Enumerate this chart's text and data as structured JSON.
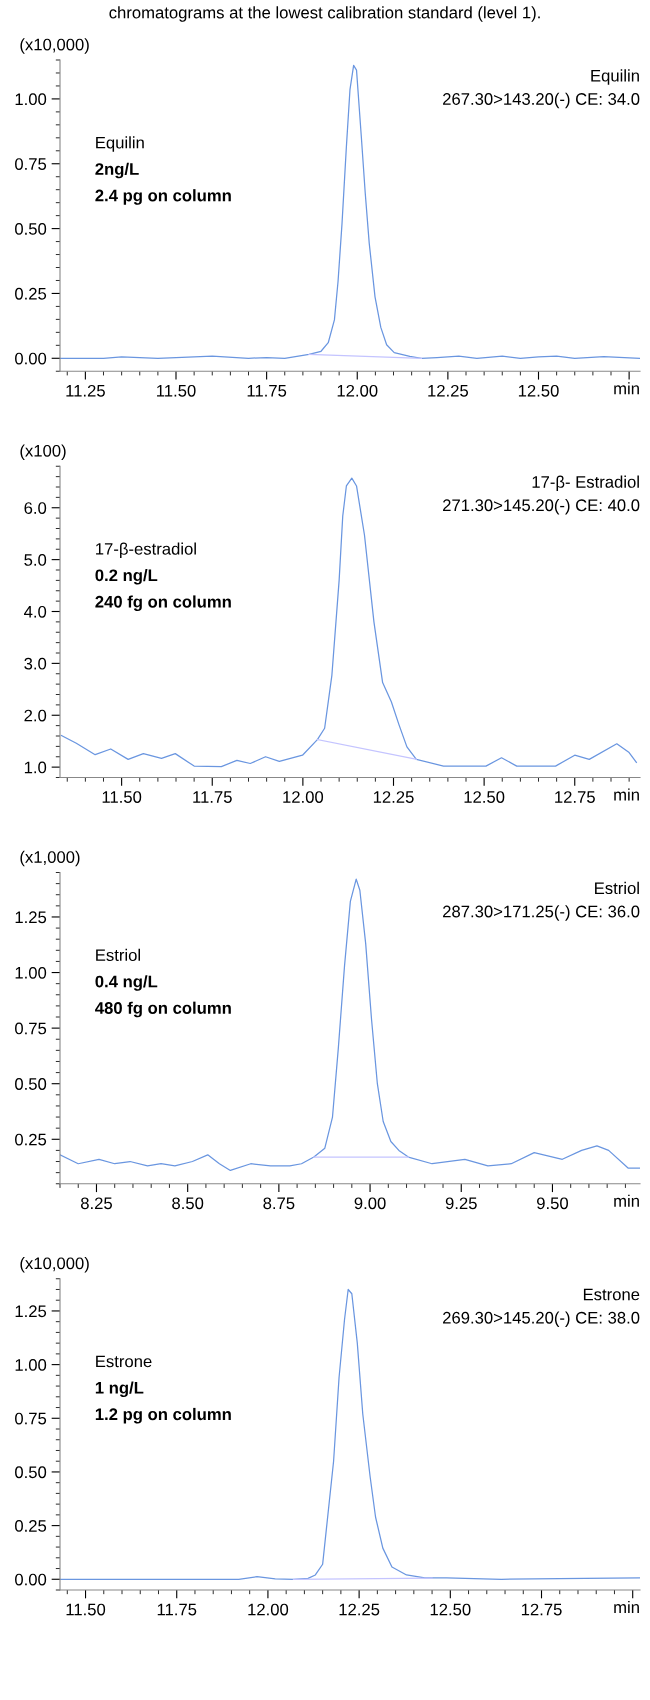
{
  "chart_data": [
    {
      "type": "line",
      "title": "chromatograms at the lowest calibration standard (level 1).",
      "ylabel": "(x10,000)",
      "xlabel": "min",
      "annotations": [
        "Equilin",
        "2ng/L",
        "2.4 pg on column",
        "Equilin",
        "267.30>143.20(-) CE: 34.0"
      ],
      "xlim": [
        11.18,
        12.78
      ],
      "ylim": [
        -0.05,
        1.15
      ],
      "xticks": [
        11.25,
        {
          "value": 11.5,
          "label": "11.50"
        },
        11.75,
        {
          "value": 12,
          "label": "12.00"
        },
        12.25,
        {
          "value": 12.5,
          "label": "12.50"
        },
        {
          "value": 12.75,
          "label": null
        }
      ],
      "yticks": [
        {
          "value": 0,
          "label": "0.00"
        },
        0.25,
        {
          "value": 0.5,
          "label": "0.50"
        },
        0.75,
        {
          "value": 1,
          "label": "1.00"
        }
      ],
      "grid": false,
      "marker": "none",
      "line_style": "solid",
      "series": [
        {
          "color": "#6a96e0",
          "x": [
            11.18,
            11.3,
            11.35,
            11.45,
            11.55,
            11.6,
            11.7,
            11.75,
            11.8,
            11.867,
            11.9,
            11.92,
            11.937,
            11.947,
            11.958,
            11.97,
            11.98,
            11.99,
            11.998,
            12.011,
            12.022,
            12.033,
            12.049,
            12.065,
            12.081,
            12.102,
            12.145,
            12.177,
            12.22,
            12.28,
            12.33,
            12.4,
            12.45,
            12.5,
            12.55,
            12.6,
            12.68,
            12.78
          ],
          "values": [
            0.0,
            0.0,
            0.005,
            0.0,
            0.005,
            0.008,
            0.0,
            0.003,
            0.0,
            0.015,
            0.027,
            0.06,
            0.148,
            0.296,
            0.52,
            0.815,
            1.037,
            1.129,
            1.111,
            0.859,
            0.637,
            0.444,
            0.237,
            0.119,
            0.052,
            0.022,
            0.007,
            0.0,
            0.003,
            0.008,
            0.0,
            0.008,
            0.0,
            0.005,
            0.008,
            0.0,
            0.006,
            0.0
          ]
        },
        {
          "color": "#c4c4ff",
          "x": [
            11.867,
            12.177
          ],
          "values": [
            0.015,
            0.0
          ]
        }
      ]
    },
    {
      "type": "line",
      "ylabel": "(x100)",
      "xlabel": "min",
      "annotations": [
        "17-β-estradiol",
        "0.2 ng/L",
        "240 fg on column",
        "17-β- Estradiol",
        "271.30>145.20(-) CE: 40.0"
      ],
      "xlim": [
        11.33,
        12.93
      ],
      "ylim": [
        0.8,
        6.8
      ],
      "xticks": [
        {
          "value": 11.5,
          "label": "11.50"
        },
        11.75,
        {
          "value": 12,
          "label": "12.00"
        },
        12.25,
        {
          "value": 12.5,
          "label": "12.50"
        },
        12.75
      ],
      "yticks": [
        {
          "value": 1,
          "label": "1.0"
        },
        {
          "value": 2,
          "label": "2.0"
        },
        {
          "value": 3,
          "label": "3.0"
        },
        {
          "value": 4,
          "label": "4.0"
        },
        {
          "value": 5,
          "label": "5.0"
        },
        {
          "value": 6,
          "label": "6.0"
        }
      ],
      "grid": false,
      "marker": "none",
      "line_style": "solid",
      "series": [
        {
          "color": "#6a96e0",
          "x": [
            11.334,
            11.375,
            11.427,
            11.47,
            11.518,
            11.56,
            11.61,
            11.648,
            11.7,
            11.775,
            11.818,
            11.855,
            11.897,
            11.935,
            11.999,
            12.04,
            12.06,
            12.08,
            12.1,
            12.11,
            12.12,
            12.135,
            12.148,
            12.17,
            12.196,
            12.22,
            12.244,
            12.265,
            12.287,
            12.313,
            12.388,
            12.505,
            12.548,
            12.59,
            12.697,
            12.75,
            12.79,
            12.866,
            12.9,
            12.92
          ],
          "values": [
            1.61,
            1.46,
            1.24,
            1.35,
            1.15,
            1.26,
            1.17,
            1.26,
            1.02,
            1.01,
            1.13,
            1.07,
            1.2,
            1.11,
            1.23,
            1.53,
            1.75,
            2.77,
            4.6,
            5.84,
            6.42,
            6.57,
            6.42,
            5.47,
            3.8,
            2.63,
            2.26,
            1.82,
            1.39,
            1.15,
            1.02,
            1.02,
            1.18,
            1.02,
            1.02,
            1.23,
            1.15,
            1.45,
            1.28,
            1.09
          ]
        },
        {
          "color": "#c4c4ff",
          "x": [
            12.04,
            12.313
          ],
          "values": [
            1.53,
            1.15
          ]
        }
      ]
    },
    {
      "type": "line",
      "ylabel": "(x1,000)",
      "xlabel": "min",
      "annotations": [
        "Estriol",
        "0.4 ng/L",
        "480 fg on column",
        "Estriol",
        "287.30>171.25(-) CE: 36.0"
      ],
      "xlim": [
        8.15,
        9.74
      ],
      "ylim": [
        0.05,
        1.45
      ],
      "xticks": [
        8.25,
        {
          "value": 8.5,
          "label": "8.50"
        },
        8.75,
        {
          "value": 9,
          "label": "9.00"
        },
        9.25,
        {
          "value": 9.5,
          "label": "9.50"
        }
      ],
      "yticks": [
        0.25,
        {
          "value": 0.5,
          "label": "0.50"
        },
        0.75,
        {
          "value": 1,
          "label": "1.00"
        },
        1.25
      ],
      "grid": false,
      "marker": "none",
      "line_style": "solid",
      "series": [
        {
          "color": "#6a96e0",
          "x": [
            8.15,
            8.2,
            8.257,
            8.3,
            8.342,
            8.39,
            8.427,
            8.465,
            8.513,
            8.555,
            8.587,
            8.617,
            8.673,
            8.727,
            8.78,
            8.812,
            8.846,
            8.876,
            8.897,
            8.913,
            8.93,
            8.946,
            8.962,
            8.972,
            8.988,
            9.004,
            9.02,
            9.036,
            9.057,
            9.079,
            9.105,
            9.17,
            9.26,
            9.323,
            9.387,
            9.45,
            9.527,
            9.58,
            9.622,
            9.654,
            9.708,
            9.74
          ],
          "values": [
            0.18,
            0.14,
            0.16,
            0.14,
            0.15,
            0.13,
            0.14,
            0.13,
            0.15,
            0.18,
            0.14,
            0.11,
            0.14,
            0.13,
            0.13,
            0.14,
            0.17,
            0.21,
            0.35,
            0.66,
            1.03,
            1.32,
            1.42,
            1.37,
            1.13,
            0.79,
            0.5,
            0.33,
            0.24,
            0.2,
            0.17,
            0.14,
            0.16,
            0.13,
            0.14,
            0.19,
            0.16,
            0.2,
            0.22,
            0.2,
            0.12,
            0.12
          ]
        },
        {
          "color": "#c4c4ff",
          "x": [
            8.846,
            9.105
          ],
          "values": [
            0.17,
            0.17
          ]
        }
      ]
    },
    {
      "type": "line",
      "ylabel": "(x10,000)",
      "xlabel": "min",
      "annotations": [
        "Estrone",
        "1 ng/L",
        "1.2 pg on column",
        "Estrone",
        "269.30>145.20(-) CE: 38.0"
      ],
      "xlim": [
        11.43,
        13.02
      ],
      "ylim": [
        -0.05,
        1.4
      ],
      "xticks": [
        {
          "value": 11.5,
          "label": "11.50"
        },
        11.75,
        {
          "value": 12,
          "label": "12.00"
        },
        12.25,
        {
          "value": 12.5,
          "label": "12.50"
        },
        12.75,
        {
          "value": 13,
          "label": null
        }
      ],
      "yticks": [
        {
          "value": 0,
          "label": "0.00"
        },
        0.25,
        {
          "value": 0.5,
          "label": "0.50"
        },
        0.75,
        {
          "value": 1,
          "label": "1.00"
        },
        1.25
      ],
      "grid": false,
      "marker": "none",
      "line_style": "solid",
      "series": [
        {
          "color": "#6a96e0",
          "x": [
            11.43,
            11.6,
            11.8,
            11.92,
            11.97,
            12.02,
            12.07,
            12.11,
            12.13,
            12.15,
            12.16,
            12.18,
            12.195,
            12.21,
            12.22,
            12.23,
            12.245,
            12.26,
            12.28,
            12.295,
            12.315,
            12.34,
            12.38,
            12.43,
            12.49,
            12.64,
            12.87,
            13.02
          ],
          "values": [
            0.0,
            0.0,
            0.0,
            0.0,
            0.012,
            0.002,
            0.0,
            0.004,
            0.02,
            0.07,
            0.23,
            0.55,
            0.94,
            1.21,
            1.35,
            1.33,
            1.1,
            0.77,
            0.48,
            0.29,
            0.145,
            0.057,
            0.02,
            0.007,
            0.007,
            0.0,
            0.004,
            0.006
          ]
        },
        {
          "color": "#c4c4ff",
          "x": [
            12.07,
            12.45
          ],
          "values": [
            0.0,
            0.005
          ]
        }
      ]
    }
  ]
}
